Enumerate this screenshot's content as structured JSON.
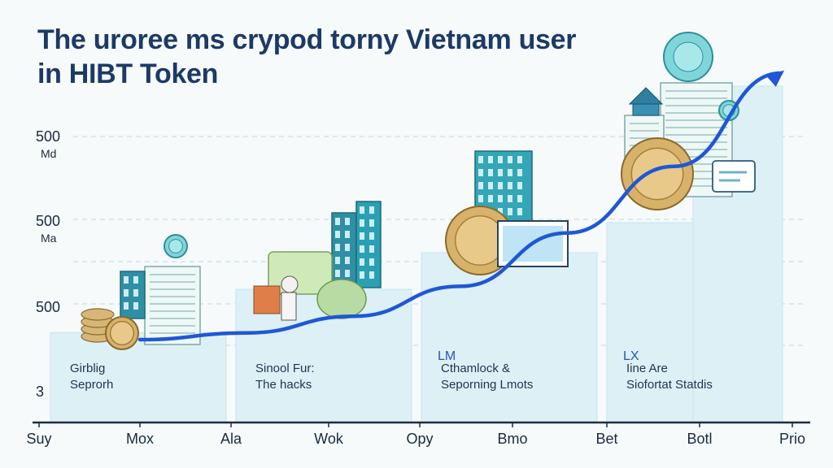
{
  "title": "The uroree ms crypod torny Vietnam user in HIBT Token",
  "chart_data": {
    "type": "bar",
    "title": "The uroree ms crypod torny Vietnam user in HIBT Token",
    "x_tick_labels": [
      "Suy",
      "Mox",
      "Ala",
      "Wok",
      "Opy",
      "Bmo",
      "Bet",
      "Botl",
      "Prio"
    ],
    "y_tick_labels": [
      {
        "value": "500",
        "sub": "Md"
      },
      {
        "value": "500",
        "sub": "Ma"
      },
      {
        "value": "500",
        "sub": ""
      },
      {
        "value": "3",
        "sub": ""
      }
    ],
    "panels": [
      {
        "tag": "",
        "label": [
          "Girblig",
          "Seprorh"
        ],
        "height": 0.27
      },
      {
        "tag": "",
        "label": [
          "Sinool Fur:",
          "The hacks"
        ],
        "height": 0.4
      },
      {
        "tag": "LM",
        "label": [
          "Cthamlock &",
          "Seporning Lmots"
        ],
        "height": 0.51
      },
      {
        "tag": "LX",
        "label": [
          "Iine Are",
          "Siofortat Statdis"
        ],
        "height": 0.6
      }
    ],
    "trend": {
      "name": "",
      "values": [
        0.2,
        0.22,
        0.27,
        0.36,
        0.52,
        0.72,
        1.0
      ]
    },
    "grid": true,
    "legend": "none",
    "colors": {
      "panel": "#dcf0f5",
      "panel_edge": "#c7e5ee",
      "trend": "#1f57d6",
      "grid": "#b9d9e3",
      "axis": "#1d2d40"
    },
    "illustrations": [
      "coin-stack-icon",
      "building-icon",
      "banknote-icon",
      "person-icon",
      "coin-icon",
      "screen-icon",
      "bank-icon",
      "document-icon",
      "chat-bubble-icon"
    ]
  }
}
